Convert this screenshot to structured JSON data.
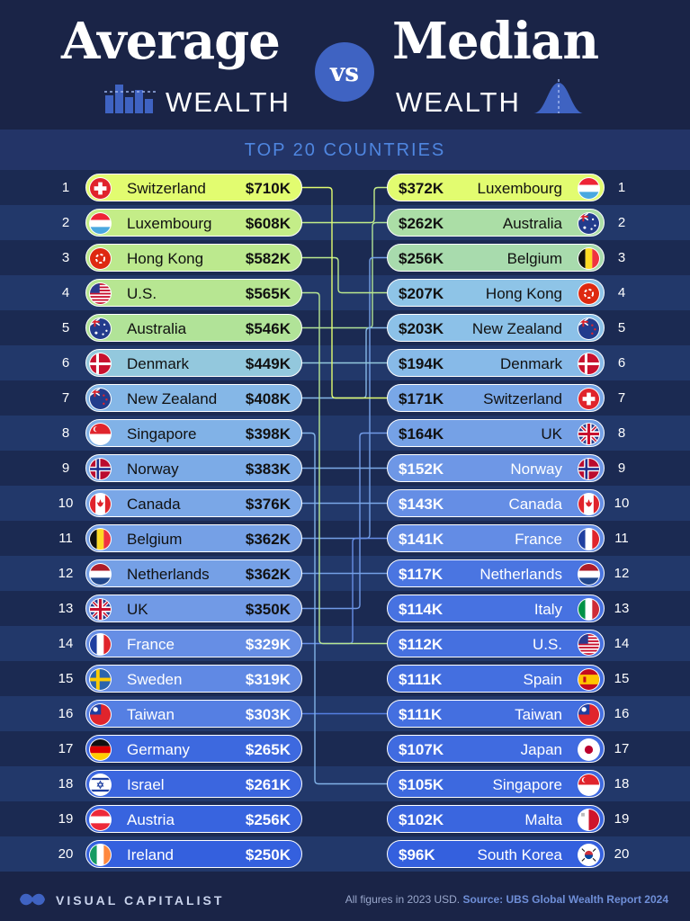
{
  "header": {
    "title_left": "Average",
    "title_left_sub": "WEALTH",
    "vs": "vs",
    "title_right": "Median",
    "title_right_sub": "WEALTH",
    "subtitle": "TOP 20 COUNTRIES"
  },
  "colors": {
    "background": "#1a2447",
    "band_odd": "#1b2a52",
    "band_even": "#22386a",
    "connector": "#d9f06a",
    "highlight": "#e6fb6e",
    "accent": "#3f63c2"
  },
  "chart_data": {
    "type": "table",
    "unit": "USD",
    "average": [
      {
        "rank": "1",
        "country": "Switzerland",
        "value": 710,
        "label": "$710K"
      },
      {
        "rank": "2",
        "country": "Luxembourg",
        "value": 608,
        "label": "$608K"
      },
      {
        "rank": "3",
        "country": "Hong Kong",
        "value": 582,
        "label": "$582K"
      },
      {
        "rank": "4",
        "country": "U.S.",
        "value": 565,
        "label": "$565K"
      },
      {
        "rank": "5",
        "country": "Australia",
        "value": 546,
        "label": "$546K"
      },
      {
        "rank": "6",
        "country": "Denmark",
        "value": 449,
        "label": "$449K"
      },
      {
        "rank": "7",
        "country": "New Zealand",
        "value": 408,
        "label": "$408K"
      },
      {
        "rank": "8",
        "country": "Singapore",
        "value": 398,
        "label": "$398K"
      },
      {
        "rank": "9",
        "country": "Norway",
        "value": 383,
        "label": "$383K"
      },
      {
        "rank": "10",
        "country": "Canada",
        "value": 376,
        "label": "$376K"
      },
      {
        "rank": "11",
        "country": "Belgium",
        "value": 362,
        "label": "$362K"
      },
      {
        "rank": "12",
        "country": "Netherlands",
        "value": 362,
        "label": "$362K"
      },
      {
        "rank": "13",
        "country": "UK",
        "value": 350,
        "label": "$350K"
      },
      {
        "rank": "14",
        "country": "France",
        "value": 329,
        "label": "$329K"
      },
      {
        "rank": "15",
        "country": "Sweden",
        "value": 319,
        "label": "$319K"
      },
      {
        "rank": "16",
        "country": "Taiwan",
        "value": 303,
        "label": "$303K"
      },
      {
        "rank": "17",
        "country": "Germany",
        "value": 265,
        "label": "$265K"
      },
      {
        "rank": "18",
        "country": "Israel",
        "value": 261,
        "label": "$261K"
      },
      {
        "rank": "19",
        "country": "Austria",
        "value": 256,
        "label": "$256K"
      },
      {
        "rank": "20",
        "country": "Ireland",
        "value": 250,
        "label": "$250K"
      }
    ],
    "median": [
      {
        "rank": "1",
        "country": "Luxembourg",
        "value": 372,
        "label": "$372K"
      },
      {
        "rank": "2",
        "country": "Australia",
        "value": 262,
        "label": "$262K"
      },
      {
        "rank": "3",
        "country": "Belgium",
        "value": 256,
        "label": "$256K"
      },
      {
        "rank": "4",
        "country": "Hong Kong",
        "value": 207,
        "label": "$207K"
      },
      {
        "rank": "5",
        "country": "New Zealand",
        "value": 203,
        "label": "$203K"
      },
      {
        "rank": "6",
        "country": "Denmark",
        "value": 194,
        "label": "$194K"
      },
      {
        "rank": "7",
        "country": "Switzerland",
        "value": 171,
        "label": "$171K"
      },
      {
        "rank": "8",
        "country": "UK",
        "value": 164,
        "label": "$164K"
      },
      {
        "rank": "9",
        "country": "Norway",
        "value": 152,
        "label": "$152K"
      },
      {
        "rank": "10",
        "country": "Canada",
        "value": 143,
        "label": "$143K"
      },
      {
        "rank": "11",
        "country": "France",
        "value": 141,
        "label": "$141K"
      },
      {
        "rank": "12",
        "country": "Netherlands",
        "value": 117,
        "label": "$117K"
      },
      {
        "rank": "13",
        "country": "Italy",
        "value": 114,
        "label": "$114K"
      },
      {
        "rank": "14",
        "country": "U.S.",
        "value": 112,
        "label": "$112K"
      },
      {
        "rank": "15",
        "country": "Spain",
        "value": 111,
        "label": "$111K"
      },
      {
        "rank": "16",
        "country": "Taiwan",
        "value": 111,
        "label": "$111K"
      },
      {
        "rank": "17",
        "country": "Japan",
        "value": 107,
        "label": "$107K"
      },
      {
        "rank": "18",
        "country": "Singapore",
        "value": 105,
        "label": "$105K"
      },
      {
        "rank": "19",
        "country": "Malta",
        "value": 102,
        "label": "$102K"
      },
      {
        "rank": "20",
        "country": "South Korea",
        "value": 96,
        "label": "$96K"
      }
    ]
  },
  "footer": {
    "brand": "VISUAL CAPITALIST",
    "note_prefix": "All figures in 2023 USD.",
    "note_source": "Source: UBS Global Wealth Report 2024"
  }
}
